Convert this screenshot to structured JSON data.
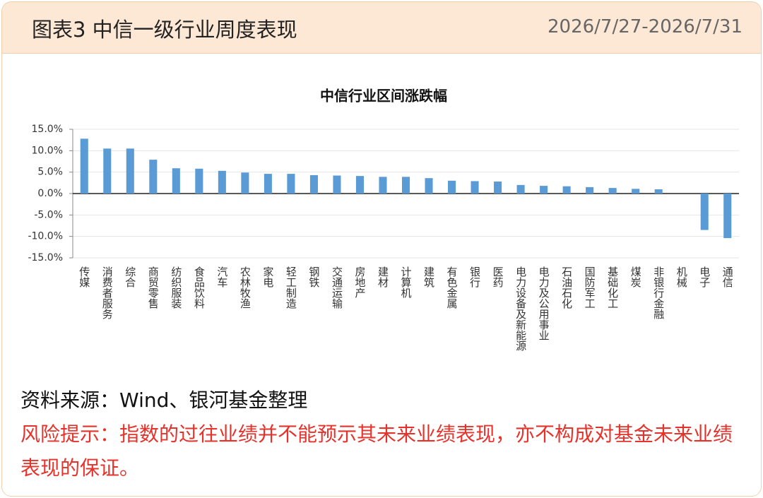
{
  "header": {
    "title": "图表3  中信一级行业周度表现",
    "date": "2026/7/27-2026/7/31"
  },
  "chart_data": {
    "type": "bar",
    "title": "中信行业区间涨跌幅",
    "categories": [
      "传媒",
      "消费者服务",
      "综合",
      "商贸零售",
      "纺织服装",
      "食品饮料",
      "汽车",
      "农林牧渔",
      "家电",
      "轻工制造",
      "钢铁",
      "交通运输",
      "房地产",
      "建材",
      "计算机",
      "建筑",
      "有色金属",
      "银行",
      "医药",
      "电力设备及新能源",
      "电力及公用事业",
      "石油石化",
      "国防军工",
      "基础化工",
      "煤炭",
      "非银行金融",
      "机械",
      "电子",
      "通信"
    ],
    "values": [
      12.8,
      10.5,
      10.5,
      7.9,
      5.9,
      5.8,
      5.3,
      4.9,
      4.6,
      4.6,
      4.3,
      4.2,
      4.1,
      3.9,
      3.9,
      3.6,
      3.0,
      2.9,
      2.8,
      2.0,
      1.8,
      1.7,
      1.5,
      1.3,
      1.1,
      1.0,
      0,
      -8.5,
      -10.4
    ],
    "color": "#5b9bd5",
    "ylim": [
      -15,
      15
    ],
    "yticks": [
      {
        "value": -15,
        "label": "-15.0%"
      },
      {
        "value": -10,
        "label": "-10.0%"
      },
      {
        "value": -5,
        "label": "-5.0%"
      },
      {
        "value": 0,
        "label": "0.0%"
      },
      {
        "value": 5,
        "label": "5.0%"
      },
      {
        "value": 10,
        "label": "10.0%"
      },
      {
        "value": 15,
        "label": "15.0%"
      }
    ],
    "grid": true
  },
  "footer": {
    "source": "资料来源：Wind、银河基金整理",
    "risk": "风险提示：指数的过往业绩并不能预示其未来业绩表现，亦不构成对基金未来业绩表现的保证。"
  }
}
